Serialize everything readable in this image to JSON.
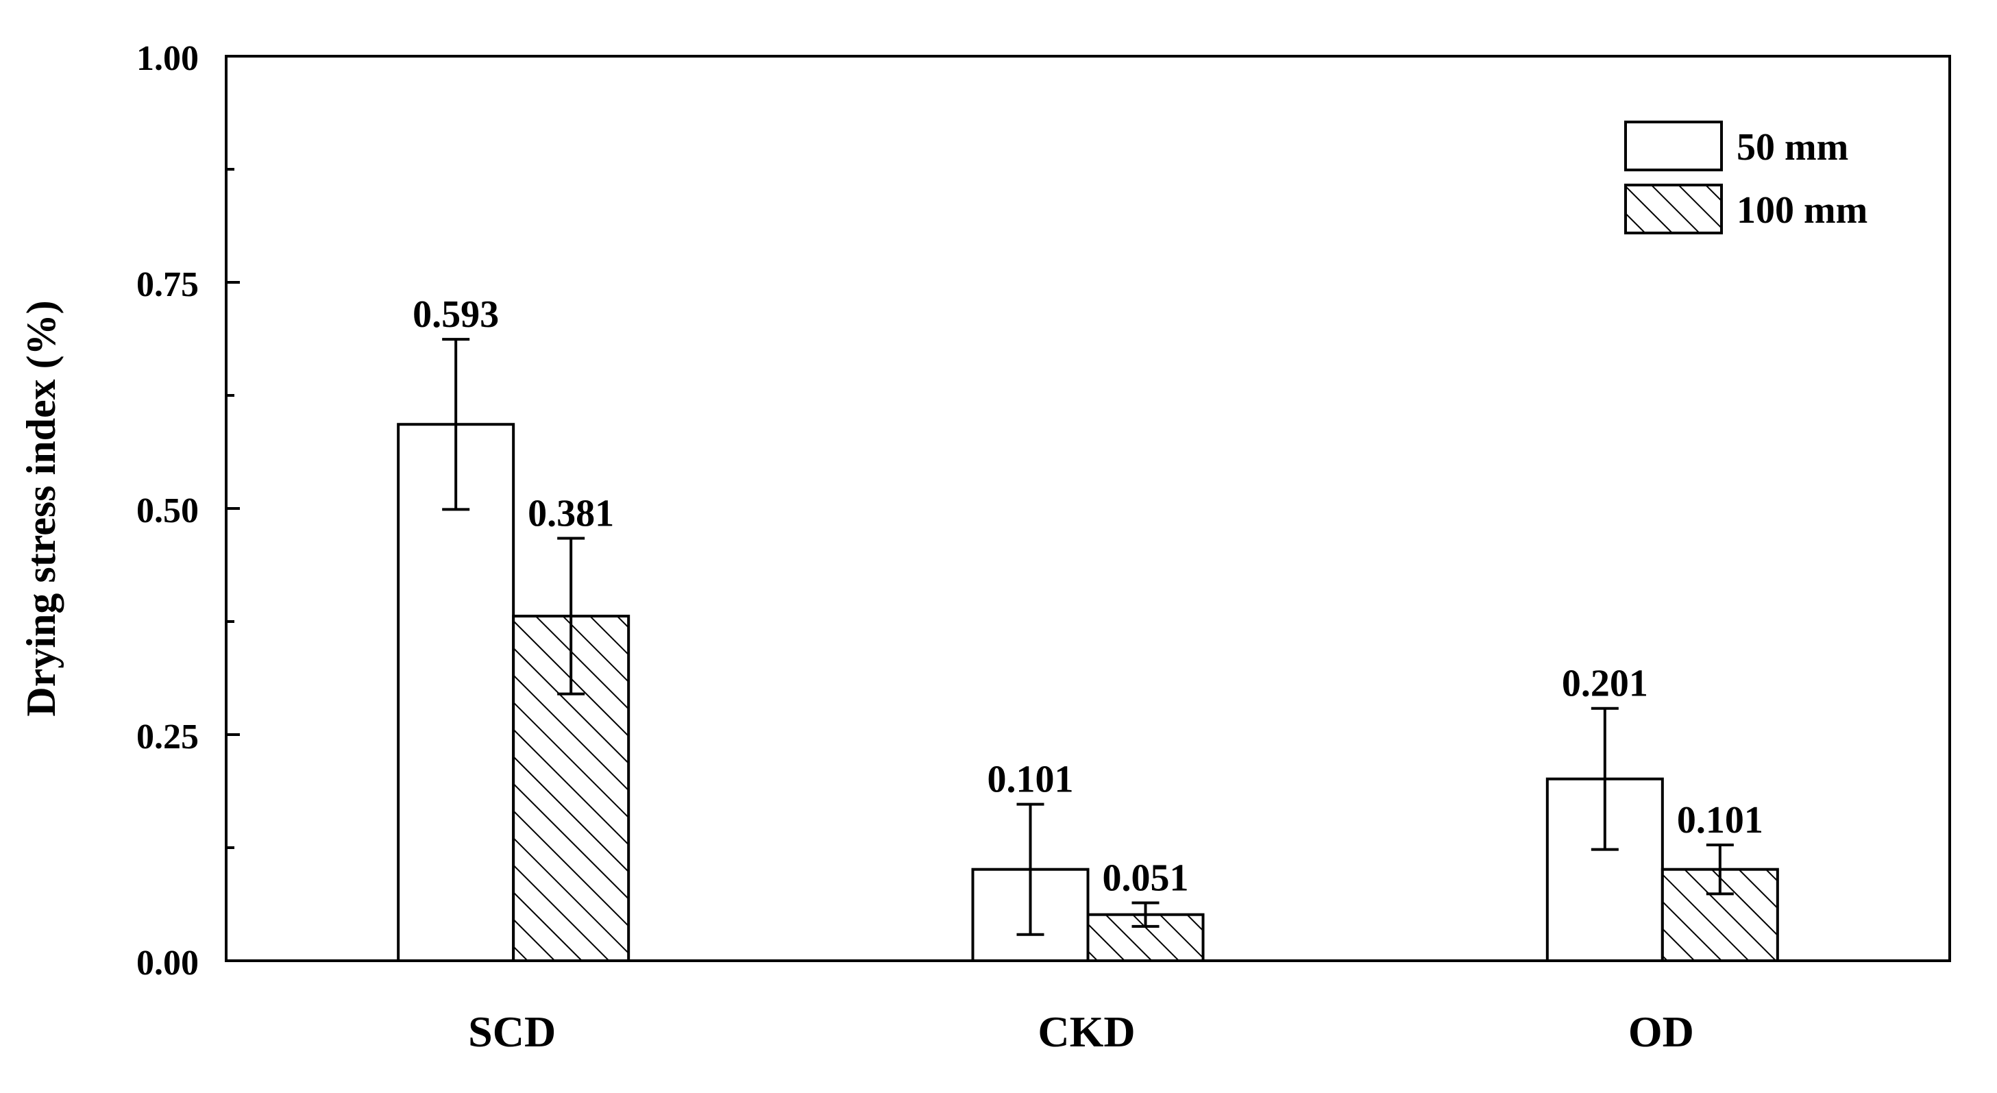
{
  "chart_data": {
    "type": "bar",
    "title": "",
    "xlabel": "",
    "ylabel": "Drying stress index (%)",
    "categories": [
      "SCD",
      "CKD",
      "OD"
    ],
    "series": [
      {
        "name": "50 mm",
        "fill": "none",
        "values": [
          0.593,
          0.101,
          0.201
        ],
        "error": [
          0.094,
          0.072,
          0.078
        ],
        "labels": [
          "0.593",
          "0.101",
          "0.201"
        ]
      },
      {
        "name": "100 mm",
        "fill": "hatched",
        "values": [
          0.381,
          0.051,
          0.101
        ],
        "error": [
          0.086,
          0.013,
          0.027
        ],
        "labels": [
          "0.381",
          "0.051",
          "0.101"
        ]
      }
    ],
    "ylim": [
      0,
      1.0
    ],
    "yticks": [
      0.0,
      0.25,
      0.5,
      0.75,
      1.0
    ],
    "ytick_labels": [
      "0.00",
      "0.25",
      "0.50",
      "0.75",
      "1.00"
    ],
    "grid": false,
    "legend_position": "top-right",
    "colors": {
      "axis": "#000000",
      "bar_stroke": "#000000",
      "background": "#ffffff"
    }
  }
}
